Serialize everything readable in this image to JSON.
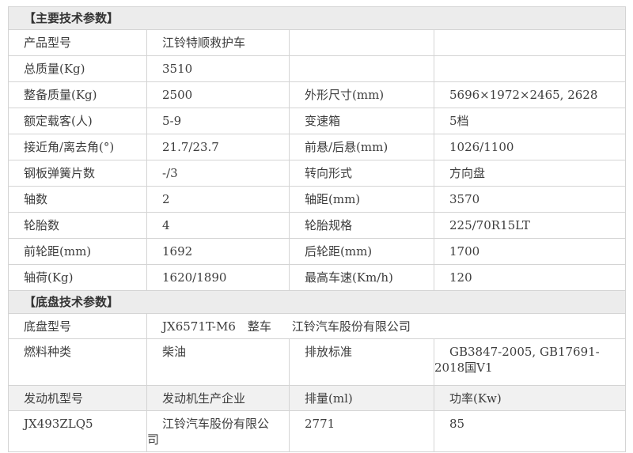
{
  "colors": {
    "border": "#d4d4d4",
    "section_band_bg": "#ececec",
    "engine_header_bg": "#f1f1f1",
    "text": "#3d3d3d",
    "page_bg": "#ffffff"
  },
  "main_section": {
    "title": "【主要技术参数】",
    "rows": [
      {
        "c1": "产品型号",
        "c2": "江铃特顺救护车",
        "c3": "",
        "c4": ""
      },
      {
        "c1": "总质量(Kg)",
        "c2": "3510",
        "c3": "",
        "c4": ""
      },
      {
        "c1": "整备质量(Kg)",
        "c2": "2500",
        "c3": "外形尺寸(mm)",
        "c4": "5696×1972×2465, 2628"
      },
      {
        "c1": "额定载客(人)",
        "c2": "5-9",
        "c3": "变速箱",
        "c4": "5档"
      },
      {
        "c1": "接近角/离去角(°)",
        "c2": "21.7/23.7",
        "c3": "前悬/后悬(mm)",
        "c4": "1026/1100"
      },
      {
        "c1": "钢板弹簧片数",
        "c2": "-/3",
        "c3": "转向形式",
        "c4": "方向盘"
      },
      {
        "c1": "轴数",
        "c2": "2",
        "c3": "轴距(mm)",
        "c4": "3570"
      },
      {
        "c1": "轮胎数",
        "c2": "4",
        "c3": "轮胎规格",
        "c4": "225/70R15LT"
      },
      {
        "c1": "前轮距(mm)",
        "c2": "1692",
        "c3": "后轮距(mm)",
        "c4": "1700"
      },
      {
        "c1": "轴荷(Kg)",
        "c2": "1620/1890",
        "c3": "最高车速(Km/h)",
        "c4": "120"
      }
    ]
  },
  "chassis_section": {
    "title": "【底盘技术参数】",
    "chassis_row": {
      "label": "底盘型号",
      "model": "JX6571T-M6　整车",
      "maker": "江铃汽车股份有限公司"
    },
    "fuel_row": {
      "label": "燃料种类",
      "value": "柴油",
      "std_label": "排放标准",
      "std_value": "GB3847-2005, GB17691-2018国V1"
    },
    "engine_header": {
      "c1": "发动机型号",
      "c2": "发动机生产企业",
      "c3": "排量(ml)",
      "c4": "功率(Kw)"
    },
    "engine_row": {
      "c1": "JX493ZLQ5",
      "c2": "江铃汽车股份有限公司",
      "c3": "2771",
      "c4": "85"
    }
  }
}
